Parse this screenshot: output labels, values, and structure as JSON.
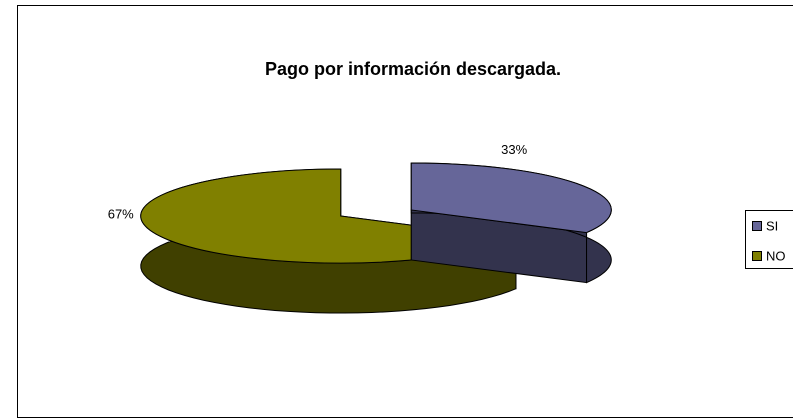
{
  "chart_data": {
    "type": "pie3d",
    "title": "Pago por información descargada.",
    "categories": [
      "SI",
      "NO"
    ],
    "values": [
      33,
      67
    ],
    "value_labels": [
      "33%",
      "67%"
    ],
    "colors": [
      "#666699",
      "#808000"
    ],
    "legend": "right"
  }
}
